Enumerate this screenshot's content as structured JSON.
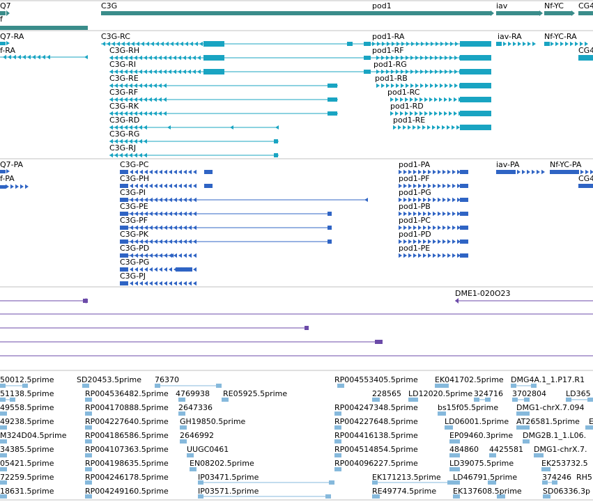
{
  "colors": {
    "gene_track": "#3a8c8a",
    "transcript_track": "#19a4c2",
    "cds_track": "#2f64c4",
    "cdna_track": "#6b4aa8",
    "est_track": "#86b9dc",
    "separator": "#c0c0c0"
  },
  "tracks": {
    "genes": {
      "labels": [
        "Q7",
        "C3G",
        "pod1",
        "iav",
        "Nf-YC",
        "CG4",
        "f"
      ]
    },
    "transcripts": {
      "labels": [
        "Q7-RA",
        "f-RA",
        "C3G-RC",
        "C3G-RH",
        "C3G-RI",
        "C3G-RE",
        "C3G-RF",
        "C3G-RK",
        "C3G-RD",
        "C3G-RG",
        "C3G-RJ",
        "pod1-RA",
        "pod1-RF",
        "pod1-RG",
        "pod1-RB",
        "pod1-RC",
        "pod1-RD",
        "pod1-RE",
        "iav-RA",
        "Nf-YC-RA",
        "CG4"
      ]
    },
    "proteins": {
      "labels": [
        "Q7-PA",
        "f-PA",
        "C3G-PC",
        "C3G-PH",
        "C3G-PI",
        "C3G-PE",
        "C3G-PF",
        "C3G-PK",
        "C3G-PD",
        "C3G-PG",
        "C3G-PJ",
        "pod1-PA",
        "pod1-PF",
        "pod1-PG",
        "pod1-PB",
        "pod1-PC",
        "pod1-PD",
        "pod1-PE",
        "iav-PA",
        "Nf-YC-PA",
        "CG4"
      ]
    },
    "cdna": {
      "labels": [
        "DME1-020O23"
      ]
    },
    "ests": {
      "labels": [
        "50012.5prime",
        "SD20453.5prime",
        "76370",
        "RP004553405.5prime",
        "EK041702.5prime",
        "DMG4A.1_1.P17.R1",
        "51138.5prime",
        "RP004536482.5prime",
        "4769938",
        "RE05925.5prime",
        "228565",
        "LD12020.5prime",
        "324716",
        "3702804",
        "LD365",
        "49558.5prime",
        "RP004170888.5prime",
        "2647336",
        "RP004247348.5prime",
        "bs15f05.5prime",
        "DMG1-chrX.7.094",
        "49238.5prime",
        "RP004227640.5prime",
        "GH19850.5prime",
        "RP004227648.5prime",
        "LD06001.5prime",
        "AT26581.5prime",
        "E",
        "M324D04.5prime",
        "RP004186586.5prime",
        "2646992",
        "RP004416138.5prime",
        "EP09460.3prime",
        "DMG2B.1_1.L06.",
        "34385.5prime",
        "RP004107363.5prime",
        "UUGC0461",
        "RP004514854.5prime",
        "484860",
        "4425581",
        "DMG1-chrX.7.",
        "05421.5prime",
        "RP004198635.5prime",
        "EN08202.5prime",
        "RP004096227.5prime",
        "LD39075.5prime",
        "EK253732.5",
        "72259.5prime",
        "RP004246178.5prime",
        "EK171213.5prime",
        "LD46791.5prime",
        "374246",
        "RH5",
        "18631.5prime",
        "RP004249160.5prime",
        "IP03471.5prime",
        "IP03571.5prime",
        "RE49774.5prime",
        "EK137608.5prime",
        "SD06336.3p"
      ]
    }
  }
}
